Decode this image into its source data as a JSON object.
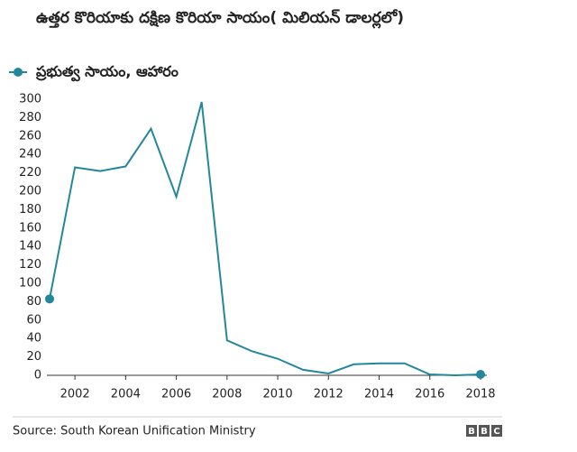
{
  "chart_data": {
    "type": "line",
    "title": "ఉత్తర కొరియాకు దక్షిణ కొరియా సాయం( మిలియన్ డాలర్లలో)",
    "x": [
      2001,
      2002,
      2003,
      2004,
      2005,
      2006,
      2007,
      2008,
      2009,
      2010,
      2011,
      2012,
      2013,
      2014,
      2015,
      2016,
      2017,
      2018
    ],
    "series": [
      {
        "name": "ప్రభుత్వ సాయం, ఆహారం",
        "color": "#22879b",
        "values": [
          83,
          226,
          222,
          227,
          268,
          194,
          297,
          38,
          26,
          18,
          6,
          2,
          12,
          13,
          13,
          1,
          0,
          1
        ]
      }
    ],
    "xlim": [
      2001,
      2018
    ],
    "xticks": [
      2002,
      2004,
      2006,
      2008,
      2010,
      2012,
      2014,
      2016,
      2018
    ],
    "ylim": [
      0,
      300
    ],
    "yticks": [
      0,
      20,
      40,
      60,
      80,
      100,
      120,
      140,
      160,
      180,
      200,
      220,
      240,
      260,
      280,
      300
    ],
    "grid": false,
    "source": "Source: South Korean Unification Ministry",
    "logo": [
      "B",
      "B",
      "C"
    ]
  }
}
